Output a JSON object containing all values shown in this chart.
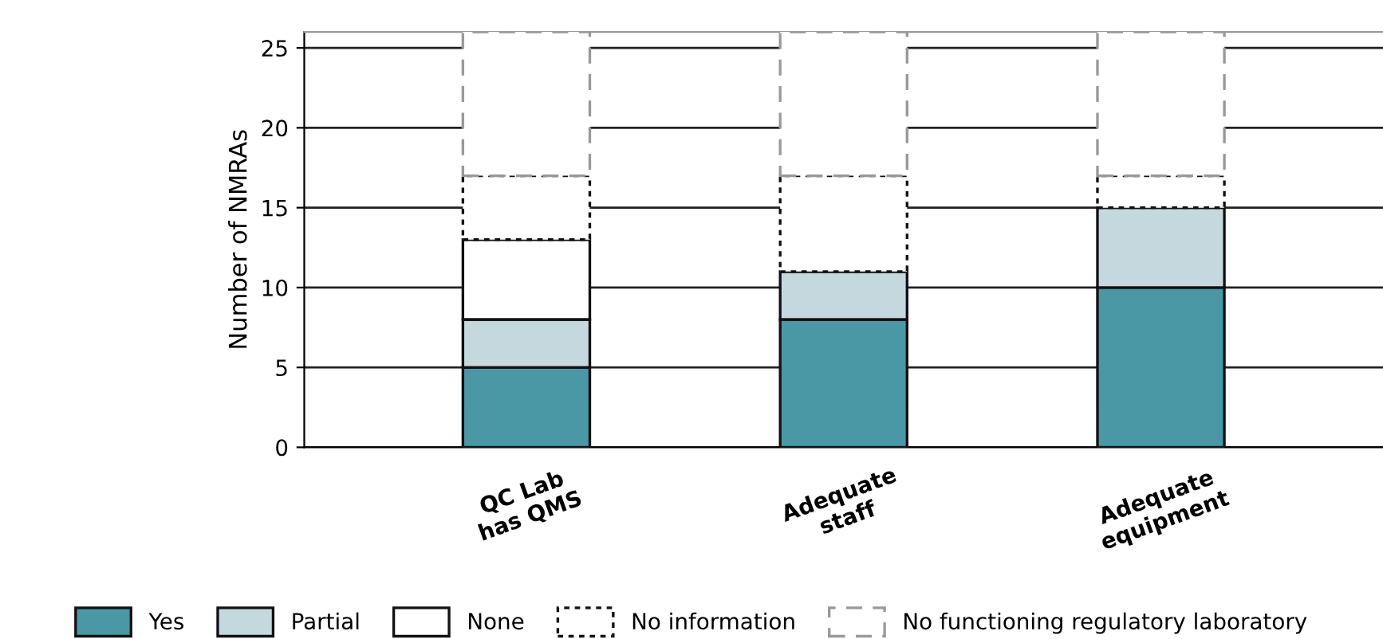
{
  "chart_data": {
    "type": "bar",
    "stacked": true,
    "ylabel": "Number of NMRAs",
    "categories": [
      "QC Lab\nhas QMS",
      "Adequate\nstaff",
      "Adequate\nequipment"
    ],
    "series": [
      {
        "name": "Yes",
        "color": "#4a98a6",
        "values": [
          5,
          8,
          10
        ]
      },
      {
        "name": "Partial",
        "color": "#c5d8de",
        "values": [
          3,
          3,
          5
        ]
      },
      {
        "name": "None",
        "color": "#ffffff",
        "values": [
          5,
          0,
          0
        ]
      },
      {
        "name": "No information",
        "color": "#ffffff",
        "values": [
          4,
          6,
          2
        ],
        "line_style": "dotted"
      },
      {
        "name": "No functioning regulatory laboratory",
        "color": "#ffffff",
        "values": [
          9,
          9,
          9
        ],
        "line_style": "dashed"
      }
    ],
    "ylim": [
      0,
      26
    ],
    "yticks": [
      0,
      5,
      10,
      15,
      20,
      25
    ],
    "grid": "y",
    "legend": "bottom"
  }
}
